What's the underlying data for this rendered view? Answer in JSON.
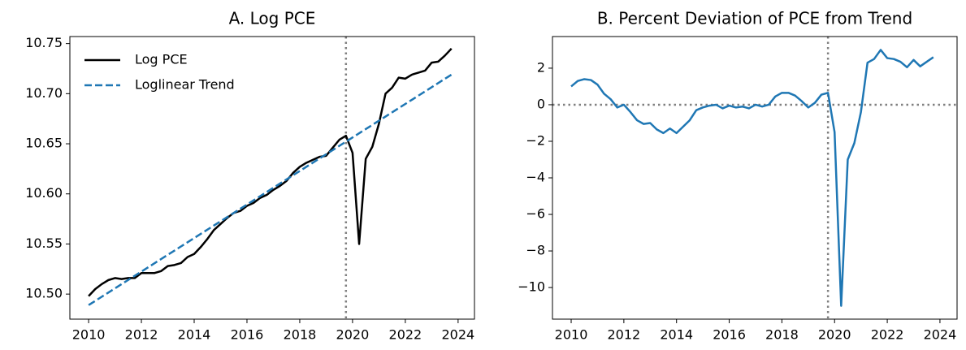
{
  "chart_data": [
    {
      "type": "line",
      "title": "A. Log PCE",
      "legend": "upper left",
      "x": [
        2010,
        2010.25,
        2010.5,
        2010.75,
        2011,
        2011.25,
        2011.5,
        2011.75,
        2012,
        2012.25,
        2012.5,
        2012.75,
        2013,
        2013.25,
        2013.5,
        2013.75,
        2014,
        2014.25,
        2014.5,
        2014.75,
        2015,
        2015.25,
        2015.5,
        2015.75,
        2016,
        2016.25,
        2016.5,
        2016.75,
        2017,
        2017.25,
        2017.5,
        2017.75,
        2018,
        2018.25,
        2018.5,
        2018.75,
        2019,
        2019.25,
        2019.5,
        2019.75,
        2020,
        2020.25,
        2020.5,
        2020.75,
        2021,
        2021.25,
        2021.5,
        2021.75,
        2022,
        2022.25,
        2022.5,
        2022.75,
        2023,
        2023.25,
        2023.5,
        2023.75
      ],
      "series": [
        {
          "name": "Log PCE",
          "color": "#000000",
          "dash": false,
          "values": [
            10.498,
            10.505,
            10.51,
            10.514,
            10.516,
            10.515,
            10.516,
            10.516,
            10.521,
            10.521,
            10.521,
            10.523,
            10.528,
            10.529,
            10.531,
            10.537,
            10.54,
            10.547,
            10.555,
            10.564,
            10.57,
            10.576,
            10.581,
            10.583,
            10.588,
            10.591,
            10.596,
            10.599,
            10.604,
            10.608,
            10.613,
            10.621,
            10.627,
            10.631,
            10.634,
            10.637,
            10.638,
            10.646,
            10.654,
            10.658,
            10.641,
            10.55,
            10.635,
            10.647,
            10.67,
            10.7,
            10.706,
            10.716,
            10.715,
            10.719,
            10.721,
            10.723,
            10.731,
            10.732,
            10.738,
            10.745
          ]
        },
        {
          "name": "Loglinear Trend",
          "color": "#1f77b4",
          "dash": true,
          "x": [
            2010,
            2023.75
          ],
          "values": [
            10.489,
            10.719
          ]
        }
      ],
      "vlines": [
        2019.75
      ],
      "hlines": [],
      "xlim": [
        2009.29,
        2024.62
      ],
      "ylim": [
        10.475,
        10.757
      ],
      "xticks": [
        2010,
        2012,
        2014,
        2016,
        2018,
        2020,
        2022,
        2024
      ],
      "yticks": [
        {
          "value": 10.5,
          "label": "10.50"
        },
        10.55,
        {
          "value": 10.6,
          "label": "10.60"
        },
        10.65,
        {
          "value": 10.7,
          "label": "10.70"
        },
        10.75
      ]
    },
    {
      "type": "line",
      "title": "B. Percent Deviation of PCE from Trend",
      "x": [
        2010,
        2010.25,
        2010.5,
        2010.75,
        2011,
        2011.25,
        2011.5,
        2011.75,
        2012,
        2012.25,
        2012.5,
        2012.75,
        2013,
        2013.25,
        2013.5,
        2013.75,
        2014,
        2014.25,
        2014.5,
        2014.75,
        2015,
        2015.25,
        2015.5,
        2015.75,
        2016,
        2016.25,
        2016.5,
        2016.75,
        2017,
        2017.25,
        2017.5,
        2017.75,
        2018,
        2018.25,
        2018.5,
        2018.75,
        2019,
        2019.25,
        2019.5,
        2019.75,
        2020,
        2020.25,
        2020.5,
        2020.75,
        2021,
        2021.25,
        2021.5,
        2021.75,
        2022,
        2022.25,
        2022.5,
        2022.75,
        2023,
        2023.25,
        2023.5,
        2023.75
      ],
      "series": [
        {
          "color": "#1f77b4",
          "dash": false,
          "values": [
            1.0,
            1.3,
            1.4,
            1.35,
            1.1,
            0.6,
            0.3,
            -0.15,
            0.0,
            -0.4,
            -0.85,
            -1.05,
            -1.0,
            -1.35,
            -1.55,
            -1.3,
            -1.55,
            -1.2,
            -0.85,
            -0.3,
            -0.15,
            -0.05,
            0.0,
            -0.2,
            -0.05,
            -0.15,
            -0.1,
            -0.2,
            0.0,
            -0.1,
            0.0,
            0.45,
            0.65,
            0.65,
            0.5,
            0.2,
            -0.15,
            0.1,
            0.55,
            0.65,
            -1.5,
            -11.0,
            -3.0,
            -2.1,
            -0.4,
            2.3,
            2.5,
            3.0,
            2.55,
            2.5,
            2.35,
            2.05,
            2.45,
            2.1,
            2.35,
            2.6
          ]
        }
      ],
      "vlines": [
        2019.75
      ],
      "hlines": [
        0
      ],
      "xlim": [
        2009.29,
        2024.65
      ],
      "ylim": [
        -11.73,
        3.73
      ],
      "xticks": [
        2010,
        2012,
        2014,
        2016,
        2018,
        2020,
        2022,
        2024
      ],
      "yticks": [
        {
          "value": -10,
          "label": "−10"
        },
        {
          "value": -8,
          "label": "−8"
        },
        {
          "value": -6,
          "label": "−6"
        },
        {
          "value": -4,
          "label": "−4"
        },
        {
          "value": -2,
          "label": "−2"
        },
        0,
        2
      ]
    }
  ]
}
